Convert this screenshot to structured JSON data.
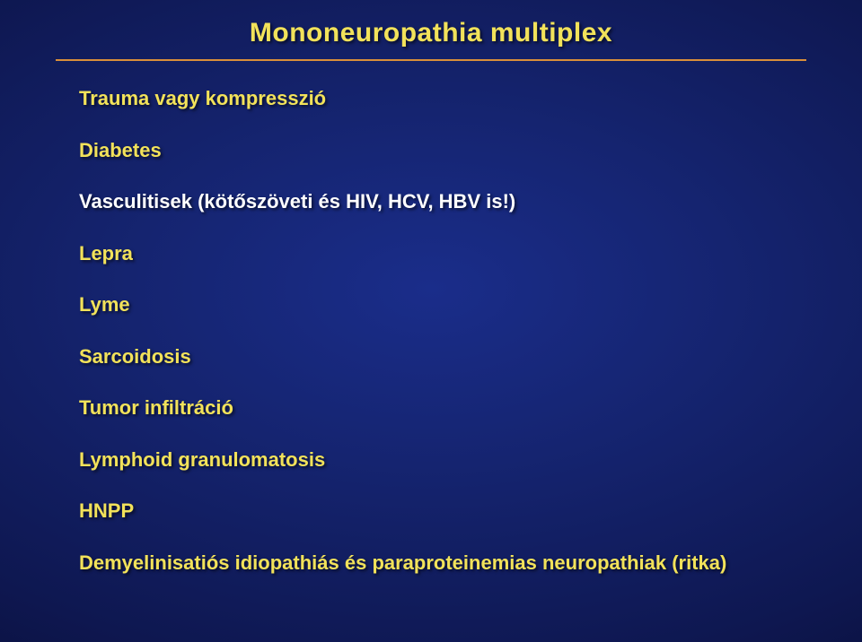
{
  "slide": {
    "title": "Mononeuropathia multiplex",
    "title_color": "#f2e25a",
    "title_fontsize": 30,
    "rule_color": "#d98f3a",
    "rule_width": 2,
    "item_color": "#f2e25a",
    "item_highlight_color": "#ffffff",
    "item_fontsize": 22,
    "item_spacing": 30,
    "items": [
      {
        "text": "Trauma vagy kompresszió",
        "highlight": false
      },
      {
        "text": "Diabetes",
        "highlight": false
      },
      {
        "text": "Vasculitisek (kötőszöveti és HIV, HCV, HBV is!)",
        "highlight": true
      },
      {
        "text": "Lepra",
        "highlight": false
      },
      {
        "text": "Lyme",
        "highlight": false
      },
      {
        "text": "Sarcoidosis",
        "highlight": false
      },
      {
        "text": "Tumor infiltráció",
        "highlight": false
      },
      {
        "text": "Lymphoid granulomatosis",
        "highlight": false
      },
      {
        "text": "HNPP",
        "highlight": false
      },
      {
        "text": "Demyelinisatiós idiopathiás és paraproteinemias neuropathiak (ritka)",
        "highlight": false
      }
    ]
  }
}
